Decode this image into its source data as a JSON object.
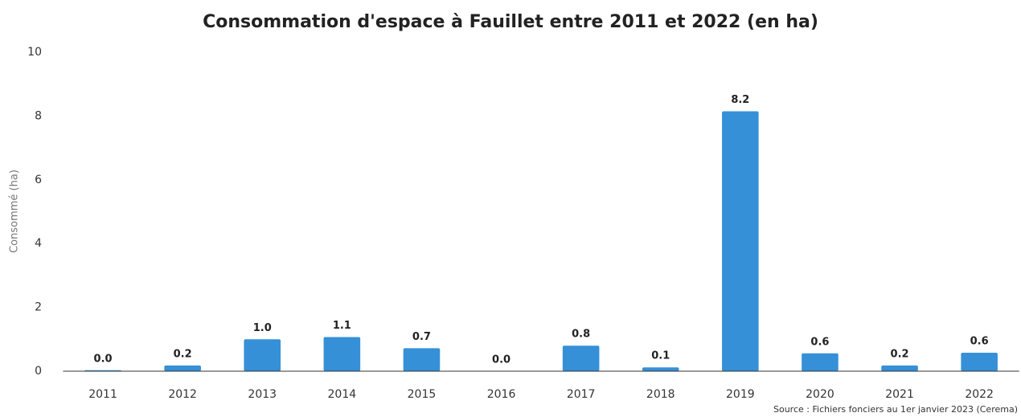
{
  "chart_data": {
    "type": "bar",
    "title": "Consommation d'espace à Fauillet entre 2011 et 2022 (en ha)",
    "y_label": "Consommé (ha)",
    "source": "Source : Fichiers fonciers au 1er janvier 2023 (Cerema)",
    "categories": [
      "2011",
      "2012",
      "2013",
      "2014",
      "2015",
      "2016",
      "2017",
      "2018",
      "2019",
      "2020",
      "2021",
      "2022"
    ],
    "values": [
      0.03,
      0.18,
      1.0,
      1.07,
      0.72,
      0.0,
      0.8,
      0.12,
      8.15,
      0.56,
      0.18,
      0.58
    ],
    "value_labels": [
      "0.0",
      "0.2",
      "1.0",
      "1.1",
      "0.7",
      "0.0",
      "0.8",
      "0.1",
      "8.2",
      "0.6",
      "0.2",
      "0.6"
    ],
    "color": "#3590d8",
    "ylim": [
      0,
      10
    ],
    "yticks": [
      0,
      2,
      4,
      6,
      8,
      10
    ],
    "grid": false
  }
}
